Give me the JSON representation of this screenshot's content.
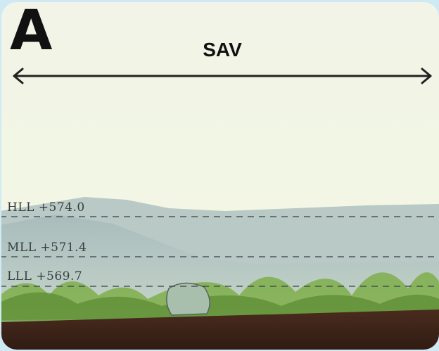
{
  "panel_label": "A",
  "title": "SAV",
  "levels": [
    {
      "label": "HLL +574.0"
    },
    {
      "label": "MLL +571.4"
    },
    {
      "label": "LLL +569.7"
    }
  ]
}
